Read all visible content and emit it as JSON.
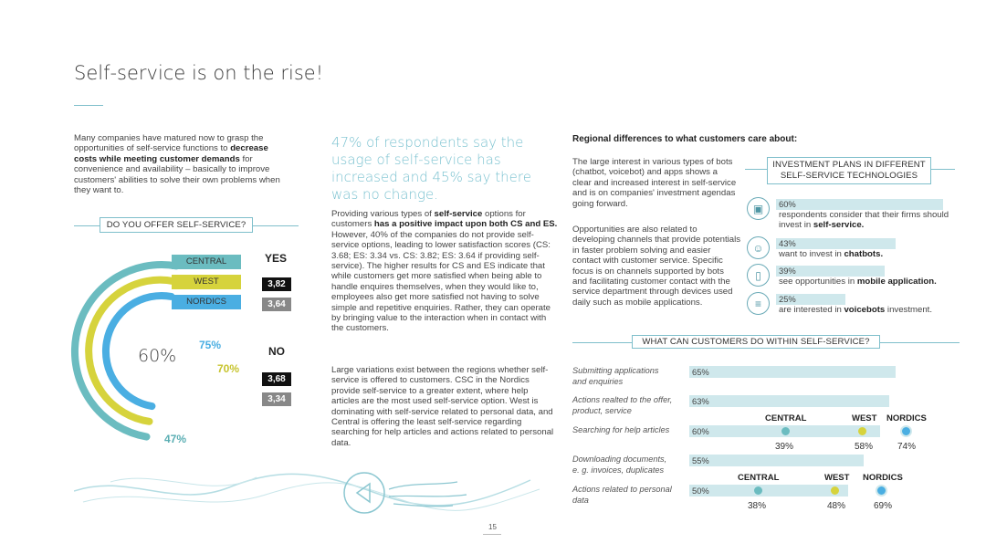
{
  "page": {
    "title": "Self-service is on the rise!",
    "page_number": "15"
  },
  "intro": {
    "p1": "Many companies have matured now to grasp the opportunities of self-service functions to ",
    "p1_bold": "decrease costs while meeting customer demands",
    "p1_end": " for convenience and availability – basically to improve customers' abilities to solve their own problems when they want to."
  },
  "offer_chart": {
    "label": "DO YOU OFFER SELF-SERVICE?",
    "center_pct": "60%",
    "legend": [
      {
        "name": "CENTRAL",
        "color": "#6bbcc0"
      },
      {
        "name": "WEST",
        "color": "#d6d33c"
      },
      {
        "name": "NORDICS",
        "color": "#4aaee2"
      }
    ],
    "yes_label": "YES",
    "no_label": "NO",
    "yes_scores": [
      "3,82",
      "3,64"
    ],
    "no_scores": [
      "3,68",
      "3,34"
    ],
    "ring_labels": {
      "nordics": "75%",
      "west": "70%",
      "central": "47%"
    },
    "ring_values": {
      "central": 0.47,
      "west": 0.7,
      "nordics": 0.75
    }
  },
  "quote": "47% of respondents say the usage of self-service has increased and 45% say there was no change.",
  "middle": {
    "p1_a": "Providing various types of ",
    "p1_b": "self-service",
    "p1_c": " options for customers ",
    "p1_d": "has a positive impact upon both CS and ES.",
    "p1_e": " However, 40% of the companies do not provide self-service options, leading to lower satisfaction scores (CS: 3.68; ES: 3.34 vs. CS: 3.82; ES: 3.64 if providing self-service). The higher results for CS and ES indicate that while customers get more satisfied when being able to handle enquires themselves, when they would like to, employees also get more satisfied not having to solve simple and repetitive enquiries. Rather, they can operate by bringing value to the interaction when in contact with the customers.",
    "p2": "Large variations exist between the regions whether self-service is offered to customers. CSC in the Nordics provide self-service to a greater extent, where help articles are the most used self-service option. West is dominating with self-service related to personal data, and Central is offering the least self-service regarding searching for help articles and actions related to personal data."
  },
  "right": {
    "heading": "Regional differences to what customers care about:",
    "p1": "The large interest in various types of bots (chatbot, voicebot) and apps shows a clear and increased interest in self-service and is on companies' investment agendas going forward.",
    "p2": "Opportunities are also related to developing channels that provide potentials in faster problem solving and easier contact with customer service. Specific focus is on channels supported by bots and facilitating customer contact with the service department through devices used daily such as mobile applications."
  },
  "investment": {
    "title_line1": "INVESTMENT PLANS IN DIFFERENT",
    "title_line2": "SELF-SERVICE TECHNOLOGIES",
    "items": [
      {
        "pct": "60%",
        "value": 0.6,
        "text": "respondents consider that their firms should invest in ",
        "bold": "self-service.",
        "after": "",
        "icon": "laptop-chat-icon"
      },
      {
        "pct": "43%",
        "value": 0.43,
        "text": "want to invest in ",
        "bold": "chatbots.",
        "after": "",
        "icon": "chatbot-icon"
      },
      {
        "pct": "39%",
        "value": 0.39,
        "text": "see opportunities in ",
        "bold": "mobile application.",
        "after": "",
        "icon": "mobile-app-icon"
      },
      {
        "pct": "25%",
        "value": 0.25,
        "text": "are interested in ",
        "bold": "voicebots",
        "after": " investment.",
        "icon": "voice-chat-icon"
      }
    ]
  },
  "within": {
    "title": "WHAT CAN CUSTOMERS DO WITHIN SELF-SERVICE?",
    "rows": [
      {
        "label_1": "Submitting applications",
        "label_2": "and enquiries",
        "pct": "65%",
        "value": 0.65
      },
      {
        "label_1": "Actions realted to the offer,",
        "label_2": "product, service",
        "pct": "63%",
        "value": 0.63
      },
      {
        "label_1": "Searching for help articles",
        "label_2": "",
        "pct": "60%",
        "value": 0.6
      },
      {
        "label_1": "Downloading documents,",
        "label_2": "e. g. invoices, duplicates",
        "pct": "55%",
        "value": 0.55
      },
      {
        "label_1": "Actions related to personal",
        "label_2": "data",
        "pct": "50%",
        "value": 0.5
      }
    ],
    "regions_a": {
      "central": "CENTRAL",
      "west": "WEST",
      "nordics": "NORDICS",
      "central_pct": "39%",
      "west_pct": "58%",
      "nordics_pct": "74%"
    },
    "regions_b": {
      "central": "CENTRAL",
      "west": "WEST",
      "nordics": "NORDICS",
      "central_pct": "38%",
      "west_pct": "48%",
      "nordics_pct": "69%"
    }
  },
  "colors": {
    "central": "#6bbcc0",
    "west": "#d6d33c",
    "nordics": "#4aaee2",
    "accent": "#7fbfcb",
    "bar": "#cfe8ec",
    "score_dark": "#111111",
    "score_grey": "#888888"
  }
}
